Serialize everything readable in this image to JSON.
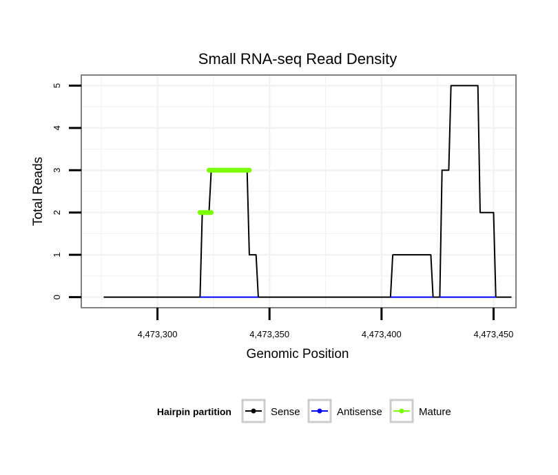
{
  "chart_data": {
    "type": "line",
    "title": "Small RNA-seq Read Density",
    "xlabel": "Genomic Position",
    "ylabel": "Total Reads",
    "xlim": [
      4473266,
      4473460
    ],
    "ylim": [
      -0.25,
      5.25
    ],
    "x_ticks": [
      4473300,
      4473350,
      4473400,
      4473450
    ],
    "x_tick_labels": [
      "4,473,300",
      "4,473,350",
      "4,473,400",
      "4,473,450"
    ],
    "y_ticks": [
      0,
      1,
      2,
      3,
      4,
      5
    ],
    "y_tick_labels": [
      "0",
      "1",
      "2",
      "3",
      "4",
      "5"
    ],
    "grid": true,
    "legend": {
      "title": "Hairpin partition",
      "position": "bottom",
      "entries": [
        "Sense",
        "Antisense",
        "Mature"
      ]
    },
    "series": [
      {
        "name": "Sense",
        "color": "#000000",
        "points": [
          [
            4473276,
            0
          ],
          [
            4473319,
            0
          ],
          [
            4473320,
            2
          ],
          [
            4473323,
            2
          ],
          [
            4473324,
            3
          ],
          [
            4473340,
            3
          ],
          [
            4473341,
            1
          ],
          [
            4473344,
            1
          ],
          [
            4473345,
            0
          ],
          [
            4473404,
            0
          ],
          [
            4473405,
            1
          ],
          [
            4473422,
            1
          ],
          [
            4473423,
            0
          ],
          [
            4473426,
            0
          ],
          [
            4473427,
            3
          ],
          [
            4473430,
            3
          ],
          [
            4473431,
            5
          ],
          [
            4473443,
            5
          ],
          [
            4473444,
            2
          ],
          [
            4473450,
            2
          ],
          [
            4473451,
            0
          ],
          [
            4473458,
            0
          ]
        ]
      },
      {
        "name": "Antisense",
        "color": "#0000ff",
        "points": [
          [
            4473319,
            0
          ],
          [
            4473345,
            0
          ],
          [
            4473404,
            0
          ],
          [
            4473423,
            0
          ],
          [
            4473426,
            0
          ],
          [
            4473451,
            0
          ]
        ]
      },
      {
        "name": "Mature",
        "color": "#7cfc00",
        "segments": [
          [
            [
              4473319,
              2
            ],
            [
              4473324,
              2
            ]
          ],
          [
            [
              4473323,
              3
            ],
            [
              4473341,
              3
            ]
          ]
        ]
      }
    ]
  }
}
